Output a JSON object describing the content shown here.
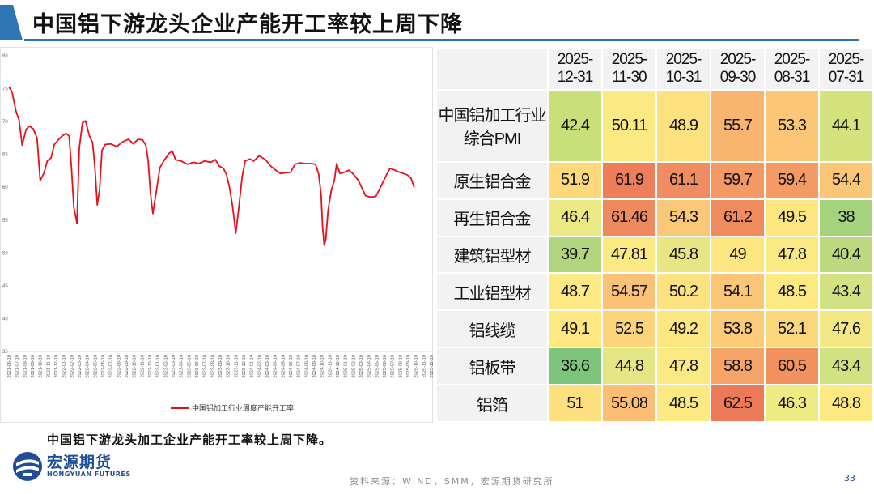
{
  "header": {
    "title": "中国铝下游龙头企业产能开工率较上周下降"
  },
  "chart_data": {
    "type": "line",
    "title": "",
    "xlabel": "",
    "ylabel": "",
    "ylim": [
      35,
      80
    ],
    "yticks": [
      "80",
      "75",
      "70",
      "65",
      "60",
      "55",
      "50",
      "45",
      "40",
      "35"
    ],
    "grid": false,
    "legend": "bottom",
    "x_ticks": [
      "2021-06-10",
      "2021-07-10",
      "2021-08-10",
      "2021-09-10",
      "2021-10-10",
      "2021-11-10",
      "2021-12-10",
      "2022-01-10",
      "2022-02-10",
      "2022-03-10",
      "2022-04-10",
      "2022-05-10",
      "2022-06-10",
      "2022-07-10",
      "2022-08-10",
      "2022-09-10",
      "2022-10-10",
      "2022-11-10",
      "2022-12-10",
      "2023-01-10",
      "2023-02-10",
      "2023-03-10",
      "2023-04-10",
      "2023-05-10",
      "2023-06-10",
      "2023-07-10",
      "2023-08-10",
      "2023-09-10",
      "2023-10-10",
      "2023-11-10",
      "2023-12-10",
      "2024-01-10",
      "2024-02-10",
      "2024-03-10",
      "2024-04-10",
      "2024-05-10",
      "2024-06-10",
      "2024-07-10",
      "2024-08-10",
      "2024-09-10",
      "2024-10-10",
      "2024-11-10",
      "2024-12-10",
      "2025-01-10",
      "2025-02-10",
      "2025-03-10",
      "2025-04-10",
      "2025-05-10",
      "2025-06-10",
      "2025-07-10",
      "2025-08-10",
      "2025-09-10",
      "2025-10-10",
      "2025-11-10",
      "2025-12-10"
    ],
    "series": [
      {
        "name": "中国铝加工行业周度产能开工率",
        "color": "#e8101c",
        "points": [
          [
            0,
            75.3
          ],
          [
            0.4,
            74.5
          ],
          [
            0.9,
            71.6
          ],
          [
            1.3,
            70.2
          ],
          [
            1.7,
            66.4
          ],
          [
            2.2,
            68.8
          ],
          [
            2.6,
            69.3
          ],
          [
            3.1,
            68.9
          ],
          [
            3.6,
            67.5
          ],
          [
            4.0,
            61.0
          ],
          [
            4.5,
            62.2
          ],
          [
            4.9,
            64.0
          ],
          [
            5.4,
            64.5
          ],
          [
            5.8,
            66.5
          ],
          [
            6.3,
            67.2
          ],
          [
            6.8,
            67.8
          ],
          [
            7.3,
            68.2
          ],
          [
            7.7,
            67.8
          ],
          [
            8.0,
            63.0
          ],
          [
            8.3,
            57.0
          ],
          [
            8.7,
            54.5
          ],
          [
            9.0,
            66.0
          ],
          [
            9.4,
            69.8
          ],
          [
            9.8,
            70.1
          ],
          [
            10.3,
            67.8
          ],
          [
            10.7,
            66.8
          ],
          [
            11.0,
            63.0
          ],
          [
            11.3,
            57.3
          ],
          [
            11.6,
            59.7
          ],
          [
            11.9,
            65.6
          ],
          [
            12.3,
            66.5
          ],
          [
            13.0,
            66.6
          ],
          [
            13.8,
            66.2
          ],
          [
            14.5,
            66.9
          ],
          [
            15.3,
            67.3
          ],
          [
            15.9,
            66.6
          ],
          [
            16.5,
            67.3
          ],
          [
            17.1,
            67.2
          ],
          [
            17.5,
            66.4
          ],
          [
            17.8,
            64.0
          ],
          [
            18.1,
            59.0
          ],
          [
            18.4,
            56.0
          ],
          [
            18.8,
            59.0
          ],
          [
            19.3,
            63.0
          ],
          [
            19.9,
            64.2
          ],
          [
            20.5,
            65.2
          ],
          [
            20.9,
            65.5
          ],
          [
            21.3,
            64.2
          ],
          [
            22.0,
            64.0
          ],
          [
            22.8,
            63.5
          ],
          [
            23.6,
            63.8
          ],
          [
            24.3,
            63.6
          ],
          [
            25.0,
            64.0
          ],
          [
            25.8,
            63.8
          ],
          [
            26.4,
            64.2
          ],
          [
            26.9,
            63.2
          ],
          [
            27.4,
            62.9
          ],
          [
            27.8,
            62.0
          ],
          [
            28.2,
            60.0
          ],
          [
            28.6,
            57.0
          ],
          [
            29.0,
            53.0
          ],
          [
            29.4,
            57.0
          ],
          [
            29.8,
            61.5
          ],
          [
            30.2,
            64.0
          ],
          [
            30.8,
            64.3
          ],
          [
            31.3,
            64.0
          ],
          [
            32.0,
            64.8
          ],
          [
            32.8,
            64.2
          ],
          [
            33.5,
            63.2
          ],
          [
            34.1,
            62.6
          ],
          [
            34.7,
            62.1
          ],
          [
            35.4,
            62.2
          ],
          [
            36.0,
            62.3
          ],
          [
            36.6,
            63.5
          ],
          [
            37.2,
            63.7
          ],
          [
            37.9,
            63.6
          ],
          [
            38.6,
            63.6
          ],
          [
            39.2,
            63.5
          ],
          [
            39.6,
            62.0
          ],
          [
            39.9,
            59.0
          ],
          [
            40.1,
            54.0
          ],
          [
            40.3,
            51.2
          ],
          [
            40.5,
            52.0
          ],
          [
            40.8,
            56.5
          ],
          [
            41.2,
            59.5
          ],
          [
            41.6,
            61.0
          ],
          [
            41.9,
            63.6
          ],
          [
            42.3,
            62.1
          ],
          [
            42.9,
            62.3
          ],
          [
            43.5,
            62.6
          ],
          [
            44.1,
            61.9
          ],
          [
            44.7,
            61.0
          ],
          [
            45.2,
            59.7
          ],
          [
            45.6,
            58.7
          ],
          [
            46.2,
            58.5
          ],
          [
            46.9,
            58.6
          ],
          [
            47.5,
            60.0
          ],
          [
            48.1,
            61.5
          ],
          [
            48.7,
            62.9
          ],
          [
            49.3,
            62.6
          ],
          [
            49.9,
            62.3
          ],
          [
            50.4,
            62.1
          ],
          [
            50.9,
            61.9
          ],
          [
            51.4,
            61.4
          ],
          [
            51.8,
            60.0
          ]
        ]
      }
    ]
  },
  "table": {
    "columns": [
      "2025-12-31",
      "2025-11-30",
      "2025-10-31",
      "2025-09-30",
      "2025-08-31",
      "2025-07-31"
    ],
    "rows": [
      {
        "label": "中国铝加工行业综合PMI",
        "values": [
          "42.4",
          "50.11",
          "48.9",
          "55.7",
          "53.3",
          "44.1"
        ],
        "colors": [
          "#c9e07a",
          "#fbe981",
          "#fde17f",
          "#f9b56f",
          "#fbc776",
          "#d5e37e"
        ]
      },
      {
        "label": "原生铝合金",
        "values": [
          "51.9",
          "61.9",
          "61.1",
          "59.7",
          "59.4",
          "54.4"
        ],
        "colors": [
          "#fdd97c",
          "#ee7d5a",
          "#f08c5f",
          "#f49964",
          "#f49b65",
          "#fbc777"
        ]
      },
      {
        "label": "再生铝合金",
        "values": [
          "46.4",
          "61.46",
          "54.3",
          "61.2",
          "49.5",
          "38"
        ],
        "colors": [
          "#ebe983",
          "#ef8a5e",
          "#fbc877",
          "#f08b5e",
          "#fde680",
          "#a5d27d"
        ]
      },
      {
        "label": "建筑铝型材",
        "values": [
          "39.7",
          "47.81",
          "45.8",
          "49",
          "47.8",
          "40.4"
        ],
        "colors": [
          "#b0d57e",
          "#fbea83",
          "#e6e684",
          "#fde680",
          "#fbea83",
          "#bcd97f"
        ]
      },
      {
        "label": "工业铝型材",
        "values": [
          "48.7",
          "54.57",
          "50.2",
          "54.1",
          "48.5",
          "43.4"
        ],
        "colors": [
          "#fde983",
          "#fbc176",
          "#fde27f",
          "#fbc677",
          "#fde981",
          "#d2e282"
        ]
      },
      {
        "label": "铝线缆",
        "values": [
          "49.1",
          "52.5",
          "49.2",
          "53.8",
          "52.1",
          "47.6"
        ],
        "colors": [
          "#fde882",
          "#fcd57b",
          "#fde781",
          "#fbcb78",
          "#fcd67b",
          "#f3e883"
        ]
      },
      {
        "label": "铝板带",
        "values": [
          "36.6",
          "44.8",
          "47.8",
          "58.8",
          "60.5",
          "43.4"
        ],
        "colors": [
          "#7cc57b",
          "#e4e684",
          "#fbea83",
          "#f6a468",
          "#f2925f",
          "#d2e282"
        ]
      },
      {
        "label": "铝箔",
        "values": [
          "51",
          "55.08",
          "48.5",
          "62.5",
          "46.3",
          "48.8"
        ],
        "colors": [
          "#fde07e",
          "#fbbe74",
          "#fde981",
          "#ec7a58",
          "#eeea84",
          "#fde882"
        ]
      }
    ]
  },
  "footer": {
    "note": "中国铝下游龙头加工企业产能开工率较上周下降。",
    "logo_cn": "宏源期货",
    "logo_en": "HONGYUAN FUTURES",
    "source": "资料来源：WIND，SMM，宏源期货研究所",
    "page": "33"
  },
  "colors": {
    "accent": "#2e75b6",
    "brand": "#1f4e96",
    "line": "#e8101c"
  }
}
